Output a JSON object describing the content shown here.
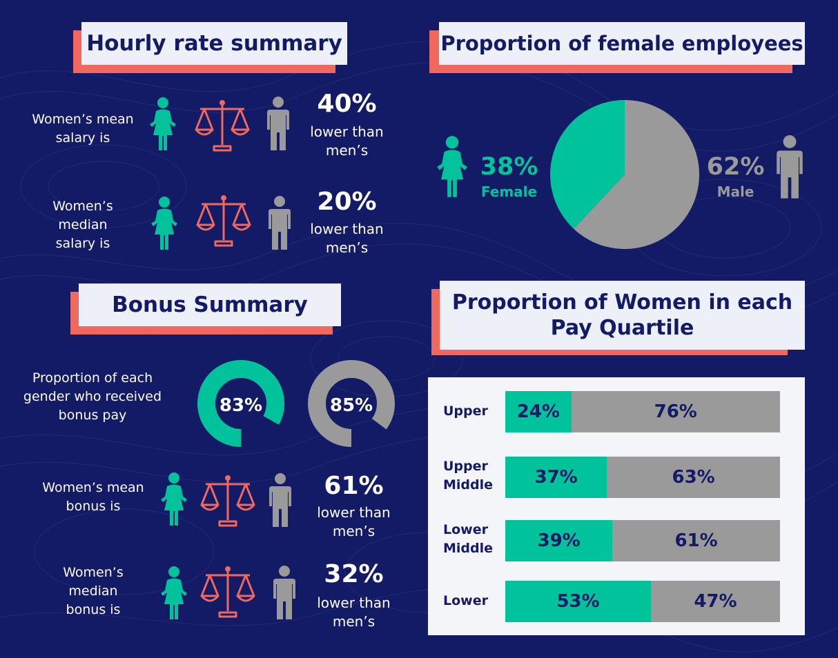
{
  "colors": {
    "background": "#131a66",
    "female": "#00c29b",
    "male": "#9a9a9a",
    "accent": "#f0695f",
    "heading_bg": "#eef0f8",
    "text_dark": "#131a66"
  },
  "icons": [
    "female-icon",
    "male-icon",
    "scales-icon"
  ],
  "hourly": {
    "title": "Hourly rate summary",
    "mean": {
      "label": [
        "Women’s mean",
        "salary is"
      ],
      "value": "40%",
      "sub": [
        "lower than",
        "men’s"
      ]
    },
    "median": {
      "label": [
        "Women’s",
        "median",
        "salary is"
      ],
      "value": "20%",
      "sub": [
        "lower than",
        "men’s"
      ]
    }
  },
  "bonus": {
    "title": "Bonus Summary",
    "received": {
      "label": [
        "Proportion of each",
        "gender who received",
        "bonus pay"
      ]
    },
    "mean": {
      "label": [
        "Women’s mean",
        "bonus is"
      ],
      "value": "61%",
      "sub": [
        "lower than",
        "men’s"
      ]
    },
    "median": {
      "label": [
        "Women’s",
        "median",
        "bonus is"
      ],
      "value": "32%",
      "sub": [
        "lower than",
        "men’s"
      ]
    }
  },
  "female_proportion": {
    "title": "Proportion of female employees",
    "female_value": "38%",
    "female_label": "Female",
    "male_value": "62%",
    "male_label": "Male"
  },
  "quartile": {
    "title": [
      "Proportion of Women in each",
      "Pay Quartile"
    ],
    "labels": [
      [
        "Upper"
      ],
      [
        "Upper",
        "Middle"
      ],
      [
        "Lower",
        "Middle"
      ],
      [
        "Lower"
      ]
    ]
  },
  "chart_data": [
    {
      "type": "pie",
      "title": "Proportion of female employees",
      "categories": [
        "Female",
        "Male"
      ],
      "values": [
        38,
        62
      ]
    },
    {
      "type": "pie",
      "title": "Proportion of each gender who received bonus pay",
      "categories": [
        "Women",
        "Men"
      ],
      "values": [
        83,
        85
      ],
      "value_labels": [
        "83%",
        "85%"
      ]
    },
    {
      "type": "bar",
      "stacked": true,
      "orientation": "horizontal",
      "title": "Proportion of Women in each Pay Quartile",
      "categories": [
        "Upper",
        "Upper Middle",
        "Lower Middle",
        "Lower"
      ],
      "series": [
        {
          "values": [
            24,
            37,
            39,
            53
          ]
        },
        {
          "values": [
            76,
            63,
            61,
            47
          ]
        }
      ],
      "value_labels": [
        [
          "24%",
          "37%",
          "39%",
          "53%"
        ],
        [
          "76%",
          "63%",
          "61%",
          "47%"
        ]
      ]
    }
  ]
}
